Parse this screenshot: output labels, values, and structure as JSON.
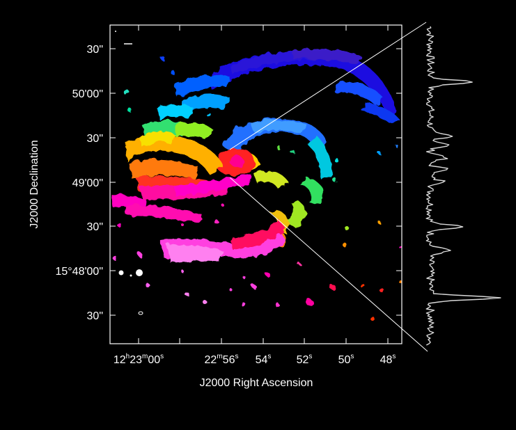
{
  "figure": {
    "x_axis_title": "J2000 Right Ascension",
    "y_axis_title": "J2000 Declination",
    "ra_ticks": [
      {
        "h": "12",
        "m": "23",
        "s": "00"
      },
      {
        "m": "22",
        "s": "56"
      },
      {
        "s": "54"
      },
      {
        "s": "52"
      },
      {
        "s": "50"
      },
      {
        "s": "48"
      }
    ],
    "dec_ticks": [
      "30\"",
      "50'00\"",
      "30\"",
      "49'00\"",
      "30\"",
      "15°48'00\"",
      "30\""
    ],
    "colors": {
      "background": "#000000",
      "axes": "#ffffff",
      "spectrum": "#d8d8d8"
    },
    "colormap": "rainbow (velocity: blue = receding to magenta = approaching)"
  }
}
